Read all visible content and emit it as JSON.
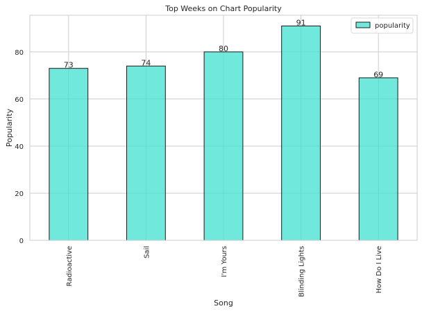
{
  "chart_data": {
    "type": "bar",
    "title": "Top Weeks on Chart Popularity",
    "xlabel": "Song",
    "ylabel": "Popularity",
    "categories": [
      "Radioactive",
      "Sail",
      "I'm Yours",
      "Blinding Lights",
      "How Do I Live"
    ],
    "series": [
      {
        "name": "popularity",
        "values": [
          73,
          74,
          80,
          91,
          69
        ]
      }
    ],
    "ylim": [
      0,
      95.55
    ],
    "yticks": [
      0,
      20,
      40,
      60,
      80
    ],
    "grid": true,
    "legend_position": "top-right",
    "colors": {
      "bar_fill": "#40E0D0",
      "bar_edge": "#1a1a1a",
      "grid": "#cccccc",
      "frame": "#cccccc"
    }
  }
}
